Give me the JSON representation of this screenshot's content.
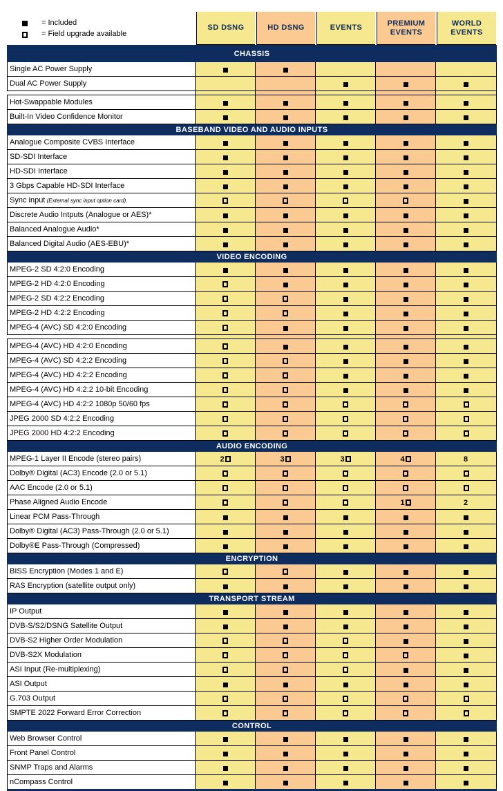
{
  "colors": {
    "navy": "#0E2C5E",
    "yellow": "#F6E88E",
    "orange": "#FACA92",
    "border": "#000000",
    "text": "#000000"
  },
  "legend": {
    "included_symbol": "filled-square",
    "included_label": "= Included",
    "upgrade_symbol": "open-square",
    "upgrade_label": "= Field upgrade available"
  },
  "columns": [
    {
      "label": "SD DSNG",
      "tone": "yellow"
    },
    {
      "label": "HD DSNG",
      "tone": "orange"
    },
    {
      "label": "EVENTS",
      "tone": "yellow"
    },
    {
      "label": "PREMIUM EVENTS",
      "tone": "orange"
    },
    {
      "label": "WORLD EVENTS",
      "tone": "yellow"
    }
  ],
  "symbol_key": {
    "■": "included",
    "□": "field-upgrade-available"
  },
  "sections": [
    {
      "title": "CHASSIS",
      "rows": [
        {
          "label": "Single AC Power Supply",
          "cells": [
            "■",
            "■",
            "",
            "",
            ""
          ]
        },
        {
          "label": "Dual AC Power Supply",
          "cells": [
            "",
            "",
            "■",
            "■",
            "■"
          ]
        },
        {
          "spacer": true
        },
        {
          "label": "Hot-Swappable Modules",
          "cells": [
            "■",
            "■",
            "■",
            "■",
            "■"
          ]
        },
        {
          "label": "Built-In Video Confidence Monitor",
          "cells": [
            "■",
            "■",
            "■",
            "■",
            "■"
          ]
        }
      ]
    },
    {
      "title": "BASEBAND VIDEO AND AUDIO INPUTS",
      "rows": [
        {
          "label": "Analogue Composite CVBS Interface",
          "cells": [
            "■",
            "■",
            "■",
            "■",
            "■"
          ]
        },
        {
          "label": "SD-SDI Interface",
          "cells": [
            "■",
            "■",
            "■",
            "■",
            "■"
          ]
        },
        {
          "label": "HD-SDI Interface",
          "cells": [
            "■",
            "■",
            "■",
            "■",
            "■"
          ]
        },
        {
          "label": "3 Gbps Capable HD-SDI Interface",
          "cells": [
            "■",
            "■",
            "■",
            "■",
            "■"
          ]
        },
        {
          "label": "Sync input",
          "note": "(External sync input option card).",
          "cells": [
            "□",
            "□",
            "□",
            "□",
            "■"
          ]
        },
        {
          "label": "Discrete Audio Intputs (Analogue or AES)*",
          "cells": [
            "■",
            "■",
            "■",
            "■",
            "■"
          ]
        },
        {
          "label": "Balanced Analogue Audio*",
          "cells": [
            "■",
            "■",
            "■",
            "■",
            "■"
          ]
        },
        {
          "label": "Balanced Digital Audio (AES-EBU)*",
          "cells": [
            "■",
            "■",
            "■",
            "■",
            "■"
          ]
        }
      ]
    },
    {
      "title": "VIDEO ENCODING",
      "rows": [
        {
          "label": "MPEG-2 SD 4:2:0 Encoding",
          "cells": [
            "■",
            "■",
            "■",
            "■",
            "■"
          ]
        },
        {
          "label": "MPEG-2 HD 4:2:0 Encoding",
          "cells": [
            "□",
            "■",
            "■",
            "■",
            "■"
          ]
        },
        {
          "label": "MPEG-2 SD 4:2:2 Encoding",
          "cells": [
            "□",
            "□",
            "■",
            "■",
            "■"
          ]
        },
        {
          "label": "MPEG-2 HD 4:2:2 Encoding",
          "cells": [
            "□",
            "□",
            "■",
            "■",
            "■"
          ]
        },
        {
          "label": "MPEG-4 (AVC) SD 4:2:0 Encoding",
          "cells": [
            "□",
            "■",
            "■",
            "■",
            "■"
          ]
        },
        {
          "spacer": true
        },
        {
          "label": "MPEG-4 (AVC) HD 4:2:0 Encoding",
          "cells": [
            "□",
            "■",
            "■",
            "■",
            "■"
          ]
        },
        {
          "label": "MPEG-4 (AVC) SD 4:2:2 Encoding",
          "cells": [
            "□",
            "□",
            "■",
            "■",
            "■"
          ]
        },
        {
          "label": "MPEG-4 (AVC) HD 4:2:2 Encoding",
          "cells": [
            "□",
            "□",
            "■",
            "■",
            "■"
          ]
        },
        {
          "label": "MPEG-4 (AVC) HD 4:2:2 10-bit Encoding",
          "cells": [
            "□",
            "□",
            "■",
            "■",
            "■"
          ]
        },
        {
          "label": "MPEG-4 (AVC) HD 4:2:2 1080p 50/60 fps",
          "cells": [
            "□",
            "□",
            "□",
            "□",
            "□"
          ]
        },
        {
          "label": "JPEG 2000 SD 4:2:2 Encoding",
          "cells": [
            "□",
            "□",
            "□",
            "□",
            "□"
          ]
        },
        {
          "label": "JPEG 2000 HD 4:2:2 Encoding",
          "cells": [
            "□",
            "□",
            "□",
            "□",
            "□"
          ]
        }
      ]
    },
    {
      "title": "AUDIO ENCODING",
      "rows": [
        {
          "label": "MPEG-1 Layer II Encode (stereo pairs)",
          "cells": [
            "2□",
            "3□",
            "3□",
            "4□",
            "8"
          ]
        },
        {
          "label": "Dolby® Digital (AC3) Encode (2.0 or 5.1)",
          "cells": [
            "□",
            "□",
            "□",
            "□",
            "□"
          ]
        },
        {
          "label": "AAC Encode (2.0 or 5.1)",
          "cells": [
            "□",
            "□",
            "□",
            "□",
            "□"
          ]
        },
        {
          "label": "Phase Aligned Audio Encode",
          "cells": [
            "□",
            "□",
            "□",
            "1□",
            "2"
          ]
        },
        {
          "label": "Linear PCM Pass-Through",
          "cells": [
            "■",
            "■",
            "■",
            "■",
            "■"
          ]
        },
        {
          "label": "Dolby® Digital (AC3) Pass-Through (2.0 or 5.1)",
          "cells": [
            "■",
            "■",
            "■",
            "■",
            "■"
          ]
        },
        {
          "label": "Dolby®E Pass-Through (Compressed)",
          "cells": [
            "■",
            "■",
            "■",
            "■",
            "■"
          ]
        }
      ]
    },
    {
      "title": "ENCRYPTION",
      "rows": [
        {
          "label": "BISS Encryption (Modes 1 and E)",
          "cells": [
            "□",
            "□",
            "■",
            "■",
            "■"
          ]
        },
        {
          "label": "RAS Encryption (satellite output only)",
          "cells": [
            "■",
            "■",
            "■",
            "■",
            "■"
          ]
        }
      ]
    },
    {
      "title": "TRANSPORT STREAM",
      "rows": [
        {
          "label": "IP Output",
          "cells": [
            "■",
            "■",
            "■",
            "■",
            "■"
          ]
        },
        {
          "label": "DVB-S/S2/DSNG Satellite Output",
          "cells": [
            "■",
            "■",
            "■",
            "■",
            "■"
          ]
        },
        {
          "label": "DVB-S2 Higher Order Modulation",
          "cells": [
            "□",
            "□",
            "□",
            "■",
            "■"
          ]
        },
        {
          "label": "DVB-S2X Modulation",
          "cells": [
            "□",
            "□",
            "□",
            "□",
            "■"
          ]
        },
        {
          "label": "ASI Input (Re-multiplexing)",
          "cells": [
            "□",
            "□",
            "□",
            "■",
            "■"
          ]
        },
        {
          "label": "ASI Output",
          "cells": [
            "■",
            "■",
            "■",
            "■",
            "■"
          ]
        },
        {
          "label": "G.703 Output",
          "cells": [
            "□",
            "□",
            "□",
            "□",
            "□"
          ]
        },
        {
          "label": "SMPTE 2022 Forward Error Correction",
          "cells": [
            "□",
            "□",
            "□",
            "□",
            "□"
          ]
        }
      ]
    },
    {
      "title": "CONTROL",
      "rows": [
        {
          "label": "Web Browser Control",
          "cells": [
            "■",
            "■",
            "■",
            "■",
            "■"
          ]
        },
        {
          "label": "Front Panel Control",
          "cells": [
            "■",
            "■",
            "■",
            "■",
            "■"
          ]
        },
        {
          "label": "SNMP Traps and Alarms",
          "cells": [
            "■",
            "■",
            "■",
            "■",
            "■"
          ]
        },
        {
          "label": "nCompass Control",
          "cells": [
            "■",
            "■",
            "■",
            "■",
            "■"
          ]
        }
      ]
    }
  ]
}
